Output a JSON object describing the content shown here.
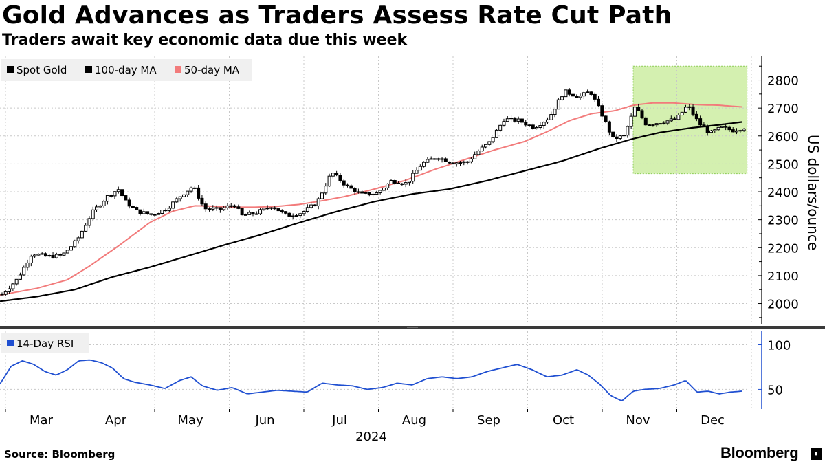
{
  "title": "Gold Advances as Traders Assess Rate Cut Path",
  "subtitle": "Traders await key economic data due this week",
  "source": "Source: Bloomberg",
  "brand": "Bloomberg",
  "colors": {
    "spot": "#000000",
    "ma100": "#000000",
    "ma50": "#f27b7b",
    "rsi": "#1f4fd1",
    "highlight_fill": "#d4f0b0",
    "highlight_border": "#8ccc55",
    "grid": "#c8c8c8"
  },
  "chart_data": [
    {
      "type": "candlestick",
      "title": "Gold Advances as Traders Assess Rate Cut Path",
      "ylabel": "US dollars/ounce",
      "ylim": [
        1925,
        2885
      ],
      "yticks": [
        2000,
        2100,
        2200,
        2300,
        2400,
        2500,
        2600,
        2700,
        2800
      ],
      "ytick_labels": [
        "2000",
        "2100",
        "2200",
        "2300",
        "2400",
        "2500",
        "2600",
        "2700",
        "2800"
      ],
      "xlabels": [
        "Mar",
        "Apr",
        "May",
        "Jun",
        "Jul",
        "Aug",
        "Sep",
        "Oct",
        "Nov",
        "Dec"
      ],
      "year_label": "2024",
      "legend": [
        "Spot Gold",
        "100-day MA",
        "50-day MA"
      ],
      "legend_position": "top-left",
      "highlight": {
        "x_start": 0.845,
        "x_end": 0.997,
        "y_low": 2465,
        "y_high": 2850
      },
      "spot_close_anchors": [
        [
          0.0,
          2033
        ],
        [
          0.02,
          2086
        ],
        [
          0.04,
          2180
        ],
        [
          0.06,
          2168
        ],
        [
          0.08,
          2172
        ],
        [
          0.1,
          2226
        ],
        [
          0.12,
          2325
        ],
        [
          0.14,
          2382
        ],
        [
          0.155,
          2410
        ],
        [
          0.165,
          2365
        ],
        [
          0.18,
          2330
        ],
        [
          0.2,
          2318
        ],
        [
          0.22,
          2340
        ],
        [
          0.24,
          2390
        ],
        [
          0.255,
          2420
        ],
        [
          0.27,
          2340
        ],
        [
          0.29,
          2336
        ],
        [
          0.31,
          2355
        ],
        [
          0.32,
          2315
        ],
        [
          0.34,
          2325
        ],
        [
          0.36,
          2350
        ],
        [
          0.38,
          2315
        ],
        [
          0.4,
          2325
        ],
        [
          0.42,
          2360
        ],
        [
          0.44,
          2470
        ],
        [
          0.46,
          2420
        ],
        [
          0.48,
          2390
        ],
        [
          0.5,
          2395
        ],
        [
          0.52,
          2440
        ],
        [
          0.54,
          2430
        ],
        [
          0.56,
          2500
        ],
        [
          0.58,
          2525
        ],
        [
          0.6,
          2505
        ],
        [
          0.62,
          2505
        ],
        [
          0.635,
          2545
        ],
        [
          0.65,
          2575
        ],
        [
          0.67,
          2660
        ],
        [
          0.69,
          2655
        ],
        [
          0.71,
          2630
        ],
        [
          0.73,
          2665
        ],
        [
          0.75,
          2760
        ],
        [
          0.77,
          2740
        ],
        [
          0.785,
          2760
        ],
        [
          0.8,
          2680
        ],
        [
          0.815,
          2590
        ],
        [
          0.83,
          2600
        ],
        [
          0.845,
          2705
        ],
        [
          0.86,
          2640
        ],
        [
          0.88,
          2650
        ],
        [
          0.9,
          2660
        ],
        [
          0.915,
          2710
        ],
        [
          0.93,
          2645
        ],
        [
          0.945,
          2610
        ],
        [
          0.96,
          2630
        ],
        [
          0.975,
          2620
        ],
        [
          0.99,
          2630
        ]
      ],
      "ma50_anchors": [
        [
          0.0,
          2030
        ],
        [
          0.05,
          2055
        ],
        [
          0.09,
          2085
        ],
        [
          0.12,
          2135
        ],
        [
          0.16,
          2210
        ],
        [
          0.2,
          2290
        ],
        [
          0.23,
          2330
        ],
        [
          0.26,
          2350
        ],
        [
          0.29,
          2348
        ],
        [
          0.31,
          2345
        ],
        [
          0.34,
          2345
        ],
        [
          0.37,
          2348
        ],
        [
          0.4,
          2355
        ],
        [
          0.43,
          2368
        ],
        [
          0.46,
          2383
        ],
        [
          0.5,
          2410
        ],
        [
          0.54,
          2440
        ],
        [
          0.58,
          2480
        ],
        [
          0.62,
          2515
        ],
        [
          0.66,
          2550
        ],
        [
          0.7,
          2580
        ],
        [
          0.73,
          2615
        ],
        [
          0.76,
          2655
        ],
        [
          0.79,
          2680
        ],
        [
          0.82,
          2690
        ],
        [
          0.845,
          2710
        ],
        [
          0.87,
          2718
        ],
        [
          0.9,
          2718
        ],
        [
          0.93,
          2712
        ],
        [
          0.96,
          2710
        ],
        [
          0.99,
          2704
        ]
      ],
      "ma100_anchors": [
        [
          0.0,
          2008
        ],
        [
          0.05,
          2025
        ],
        [
          0.1,
          2050
        ],
        [
          0.15,
          2095
        ],
        [
          0.2,
          2130
        ],
        [
          0.25,
          2170
        ],
        [
          0.3,
          2210
        ],
        [
          0.35,
          2248
        ],
        [
          0.4,
          2290
        ],
        [
          0.45,
          2330
        ],
        [
          0.5,
          2365
        ],
        [
          0.55,
          2392
        ],
        [
          0.6,
          2410
        ],
        [
          0.65,
          2440
        ],
        [
          0.7,
          2475
        ],
        [
          0.75,
          2510
        ],
        [
          0.8,
          2555
        ],
        [
          0.845,
          2590
        ],
        [
          0.88,
          2612
        ],
        [
          0.92,
          2628
        ],
        [
          0.96,
          2640
        ],
        [
          0.99,
          2650
        ]
      ]
    },
    {
      "type": "line",
      "title": "14-Day RSI",
      "legend": [
        "14-Day RSI"
      ],
      "ylim": [
        28,
        115
      ],
      "yticks": [
        50,
        100
      ],
      "ytick_labels": [
        "50",
        "100"
      ],
      "rsi_anchors": [
        [
          0.0,
          56
        ],
        [
          0.015,
          76
        ],
        [
          0.03,
          82
        ],
        [
          0.045,
          78
        ],
        [
          0.06,
          70
        ],
        [
          0.075,
          66
        ],
        [
          0.09,
          72
        ],
        [
          0.105,
          82
        ],
        [
          0.12,
          83
        ],
        [
          0.135,
          80
        ],
        [
          0.15,
          74
        ],
        [
          0.165,
          62
        ],
        [
          0.18,
          58
        ],
        [
          0.2,
          55
        ],
        [
          0.22,
          51
        ],
        [
          0.24,
          60
        ],
        [
          0.255,
          64
        ],
        [
          0.27,
          54
        ],
        [
          0.29,
          49
        ],
        [
          0.31,
          52
        ],
        [
          0.33,
          45
        ],
        [
          0.35,
          47
        ],
        [
          0.37,
          49
        ],
        [
          0.39,
          48
        ],
        [
          0.41,
          47
        ],
        [
          0.43,
          57
        ],
        [
          0.45,
          55
        ],
        [
          0.47,
          54
        ],
        [
          0.49,
          50
        ],
        [
          0.51,
          52
        ],
        [
          0.53,
          57
        ],
        [
          0.55,
          55
        ],
        [
          0.57,
          62
        ],
        [
          0.59,
          64
        ],
        [
          0.61,
          62
        ],
        [
          0.63,
          64
        ],
        [
          0.65,
          70
        ],
        [
          0.67,
          74
        ],
        [
          0.69,
          78
        ],
        [
          0.71,
          72
        ],
        [
          0.73,
          64
        ],
        [
          0.75,
          66
        ],
        [
          0.77,
          72
        ],
        [
          0.785,
          66
        ],
        [
          0.8,
          56
        ],
        [
          0.815,
          43
        ],
        [
          0.83,
          37
        ],
        [
          0.845,
          48
        ],
        [
          0.86,
          50
        ],
        [
          0.88,
          51
        ],
        [
          0.9,
          55
        ],
        [
          0.915,
          60
        ],
        [
          0.93,
          47
        ],
        [
          0.945,
          48
        ],
        [
          0.96,
          45
        ],
        [
          0.975,
          47
        ],
        [
          0.99,
          48
        ]
      ]
    }
  ]
}
